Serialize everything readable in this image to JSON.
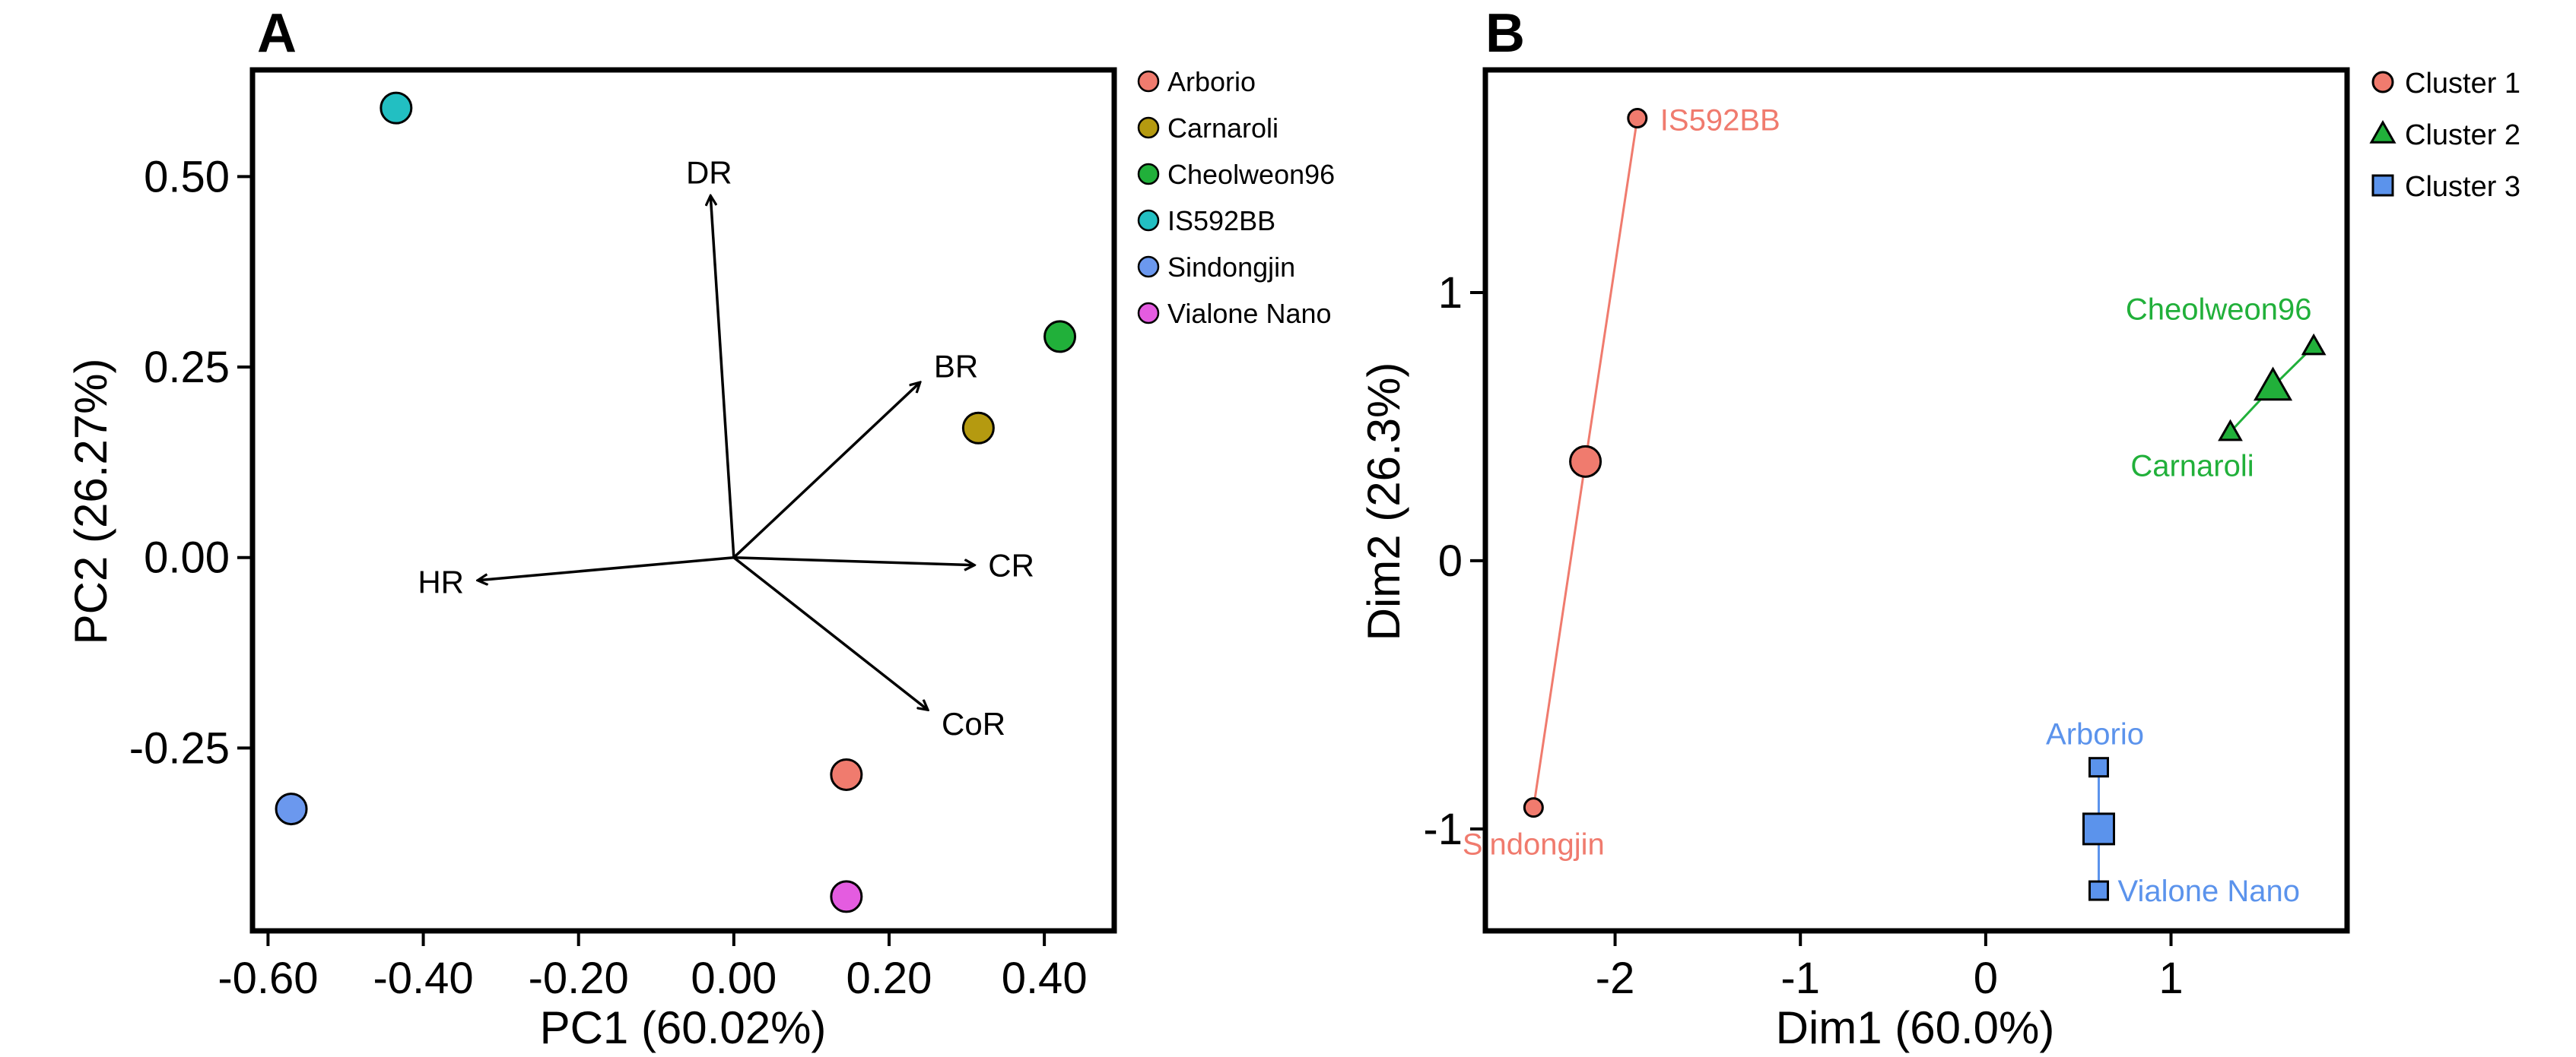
{
  "chart_data": [
    {
      "panel_label": "A",
      "type": "scatter",
      "subtype": "pca-biplot",
      "xlabel": "PC1 (60.02%)",
      "ylabel": "PC2 (26.27%)",
      "xlim": [
        -0.62,
        0.49
      ],
      "ylim": [
        -0.49,
        0.64
      ],
      "xticks": [
        -0.6,
        -0.4,
        -0.2,
        0.0,
        0.2,
        0.4
      ],
      "xtick_labels": [
        "-0.60",
        "-0.40",
        "-0.20",
        "0.00",
        "0.20",
        "0.40"
      ],
      "yticks": [
        -0.25,
        0.0,
        0.25,
        0.5
      ],
      "ytick_labels": [
        "-0.25",
        "0.00",
        "0.25",
        "0.50"
      ],
      "grid": false,
      "legend_position": "outside-right",
      "points": [
        {
          "name": "Arborio",
          "x": 0.145,
          "y": -0.285,
          "color": "#F07B6E"
        },
        {
          "name": "Carnaroli",
          "x": 0.315,
          "y": 0.17,
          "color": "#B59A10"
        },
        {
          "name": "Cheolweon96",
          "x": 0.42,
          "y": 0.29,
          "color": "#21B03A"
        },
        {
          "name": "IS592BB",
          "x": -0.435,
          "y": 0.59,
          "color": "#22BFC2"
        },
        {
          "name": "Sindongjin",
          "x": -0.57,
          "y": -0.33,
          "color": "#6B98EE"
        },
        {
          "name": "Vialone Nano",
          "x": 0.145,
          "y": -0.445,
          "color": "#E45CE0"
        }
      ],
      "loadings": [
        {
          "label": "DR",
          "x": -0.03,
          "y": 0.475
        },
        {
          "label": "BR",
          "x": 0.24,
          "y": 0.23
        },
        {
          "label": "CR",
          "x": 0.31,
          "y": -0.01
        },
        {
          "label": "HR",
          "x": -0.33,
          "y": -0.03
        },
        {
          "label": "CoR",
          "x": 0.25,
          "y": -0.2
        }
      ]
    },
    {
      "panel_label": "B",
      "type": "scatter",
      "subtype": "cluster-plot",
      "xlabel": "Dim1 (60.0%)",
      "ylabel": "Dim2 (26.3%)",
      "xlim": [
        -2.7,
        1.95
      ],
      "ylim": [
        -1.38,
        1.83
      ],
      "xticks": [
        -2,
        -1,
        0,
        1
      ],
      "xtick_labels": [
        "-2",
        "-1",
        "0",
        "1"
      ],
      "yticks": [
        -1,
        0,
        1
      ],
      "ytick_labels": [
        "-1",
        "0",
        "1"
      ],
      "grid": false,
      "legend_position": "outside-right",
      "series": [
        {
          "name": "Cluster 1",
          "marker": "circle",
          "color": "#F07B6E",
          "centroid": {
            "x": -2.16,
            "y": 0.37
          },
          "points": [
            {
              "label": "IS592BB",
              "x": -1.88,
              "y": 1.65
            },
            {
              "label": "Sindongjin",
              "x": -2.44,
              "y": -0.92
            }
          ]
        },
        {
          "name": "Cluster 2",
          "marker": "triangle",
          "color": "#21B03A",
          "centroid": {
            "x": 1.55,
            "y": 0.65
          },
          "points": [
            {
              "label": "Cheolweon96",
              "x": 1.77,
              "y": 0.8
            },
            {
              "label": "Carnaroli",
              "x": 1.32,
              "y": 0.48
            }
          ]
        },
        {
          "name": "Cluster 3",
          "marker": "square",
          "color": "#5B93EC",
          "centroid": {
            "x": 0.61,
            "y": -1.0
          },
          "points": [
            {
              "label": "Arborio",
              "x": 0.61,
              "y": -0.77
            },
            {
              "label": "Vialone  Nano",
              "x": 0.61,
              "y": -1.23
            }
          ]
        }
      ]
    }
  ]
}
